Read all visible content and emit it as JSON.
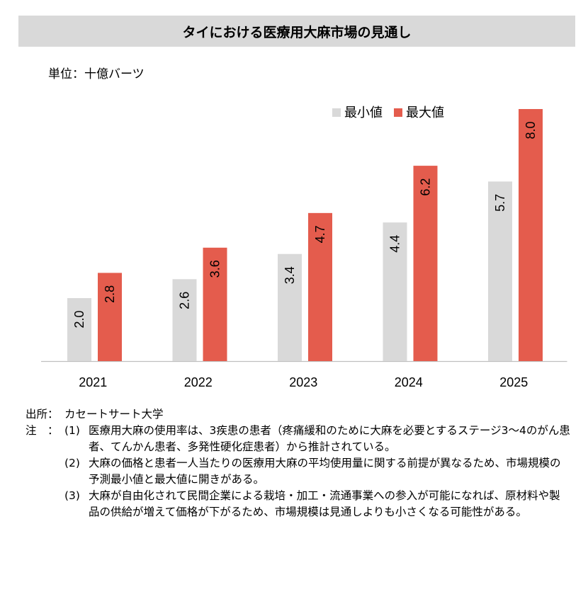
{
  "title": "タイにおける医療用大麻市場の見通し",
  "unit_label": "単位：十億バーツ",
  "colors": {
    "min": "#d9d9d9",
    "max": "#e45c4d",
    "axis": "#bfbfbf",
    "title_bg": "#d9d9d9"
  },
  "chart_data": {
    "type": "bar",
    "categories": [
      "2021",
      "2022",
      "2023",
      "2024",
      "2025"
    ],
    "series": [
      {
        "name": "最小値",
        "values": [
          2.0,
          2.6,
          3.4,
          4.4,
          5.7
        ],
        "labels": [
          "2.0",
          "2.6",
          "3.4",
          "4.4",
          "5.7"
        ]
      },
      {
        "name": "最大値",
        "values": [
          2.8,
          3.6,
          4.7,
          6.2,
          8.0
        ],
        "labels": [
          "2.8",
          "3.6",
          "4.7",
          "6.2",
          "8.0"
        ]
      }
    ],
    "ylim": [
      0,
      9
    ],
    "legend": "top-right",
    "data_label_orientation": "vertical"
  },
  "source": {
    "label": "出所：",
    "text": "カセートサート大学"
  },
  "notes": {
    "label": "注　：",
    "items": [
      {
        "num": "(1)",
        "text": "医療用大麻の使用率は、3疾患の患者（疼痛緩和のために大麻を必要とするステージ3～4のがん患者、てんかん患者、多発性硬化症患者）から推計されている。"
      },
      {
        "num": "(2)",
        "text": "大麻の価格と患者一人当たりの医療用大麻の平均使用量に関する前提が異なるため、市場規模の予測最小値と最大値に開きがある。"
      },
      {
        "num": "(3)",
        "text": "大麻が自由化されて民間企業による栽培・加工・流通事業への参入が可能になれば、原材料や製品の供給が増えて価格が下がるため、市場規模は見通しよりも小さくなる可能性がある。"
      }
    ]
  }
}
